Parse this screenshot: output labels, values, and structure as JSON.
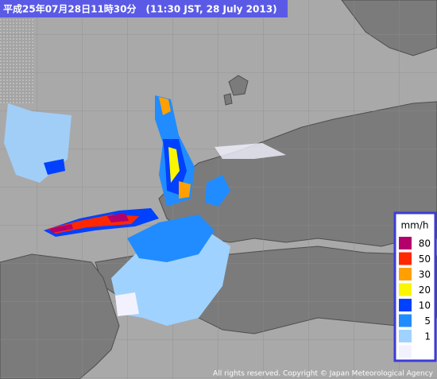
{
  "header": {
    "title": "平成25年07月28日11時30分　(11:30 JST, 28 July 2013)"
  },
  "legend": {
    "unit": "mm/h",
    "levels": [
      {
        "value": 80,
        "color": "#b4006b"
      },
      {
        "value": 50,
        "color": "#ff2800"
      },
      {
        "value": 30,
        "color": "#ffa000"
      },
      {
        "value": 20,
        "color": "#faf500"
      },
      {
        "value": 10,
        "color": "#0041ff"
      },
      {
        "value": 5,
        "color": "#218cff"
      },
      {
        "value": 1,
        "color": "#a0d2ff"
      },
      {
        "value": null,
        "color": "#f2f2ff"
      }
    ]
  },
  "footer": {
    "copyright": "All rights reserved. Copyright © Japan Meteorological Agency"
  }
}
